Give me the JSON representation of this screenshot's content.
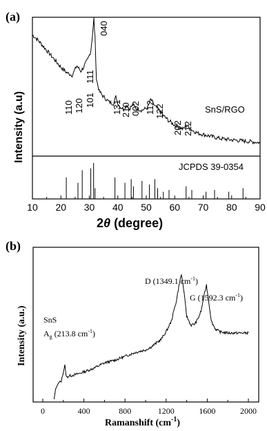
{
  "chart_data": [
    {
      "panel": "(a)",
      "type": "line",
      "xlabel": "2θ (degree)",
      "ylabel": "Intensity (a.u)",
      "xlim": [
        10,
        90
      ],
      "xticks": [
        "10",
        "20",
        "30",
        "40",
        "50",
        "60",
        "70",
        "80",
        "90"
      ],
      "series": [
        {
          "name": "SnS/RGO",
          "x": [
            10,
            12,
            14,
            16,
            18,
            20,
            22,
            24,
            25.6,
            27,
            28,
            29.5,
            30.5,
            31.2,
            31.6,
            32.0,
            32.5,
            33.5,
            35,
            37,
            38.5,
            39.3,
            40.5,
            42,
            43.2,
            44,
            45.3,
            46.8,
            48.5,
            50.5,
            51.6,
            53,
            54.5,
            56,
            58,
            60,
            62,
            63,
            64.2,
            65.5,
            68,
            72,
            76,
            80,
            85,
            90
          ],
          "y": [
            88,
            84,
            79,
            74,
            69,
            64,
            60,
            58,
            65,
            61,
            64,
            70,
            76,
            90,
            100,
            85,
            55,
            46,
            42,
            38,
            37,
            42,
            35,
            33,
            36,
            33,
            36,
            33,
            32,
            34,
            40,
            35,
            32,
            28,
            24,
            21,
            19,
            18,
            21,
            18,
            15,
            13,
            11,
            10,
            9,
            8
          ]
        }
      ],
      "annotations": [
        "110",
        "120",
        "101",
        "111",
        "040",
        "131",
        "210",
        "002",
        "112",
        "122",
        "202",
        "212"
      ]
    },
    {
      "panel": "(a) lower",
      "type": "bar",
      "title": "JCPDS 39-0354",
      "xlim": [
        10,
        90
      ],
      "x": [
        21.9,
        26.0,
        27.5,
        30.5,
        31.5,
        32.0,
        39.0,
        42.5,
        44.7,
        45.5,
        48.5,
        51.1,
        53.0,
        54.0,
        56.0,
        58.0,
        64.0,
        66.0,
        71.0,
        74.0,
        79.0,
        84.0
      ],
      "values": [
        60,
        45,
        80,
        85,
        100,
        30,
        60,
        45,
        55,
        35,
        50,
        40,
        55,
        30,
        20,
        25,
        35,
        25,
        20,
        25,
        20,
        30
      ]
    },
    {
      "panel": "(b)",
      "type": "line",
      "xlabel": "Ramanshift (cm⁻¹)",
      "ylabel": "Intensity (a.u.)",
      "xlim": [
        0,
        2000
      ],
      "xticks": [
        "0",
        "400",
        "800",
        "1200",
        "1600",
        "2000"
      ],
      "series": [
        {
          "x": [
            110,
            125,
            150,
            180,
            213.8,
            230,
            260,
            320,
            400,
            500,
            600,
            700,
            800,
            900,
            1000,
            1050,
            1100,
            1150,
            1200,
            1250,
            1300,
            1330,
            1349.1,
            1370,
            1400,
            1440,
            1480,
            1510,
            1540,
            1570,
            1592.3,
            1610,
            1640,
            1680,
            1720,
            1800,
            1900,
            2000
          ],
          "y": [
            0,
            8,
            12,
            14,
            26,
            17,
            18,
            19,
            21,
            24,
            28,
            30,
            33,
            36,
            38,
            40,
            43,
            46,
            52,
            60,
            76,
            90,
            96,
            85,
            64,
            57,
            58,
            62,
            68,
            80,
            88,
            78,
            60,
            54,
            52,
            51,
            51,
            51
          ]
        }
      ],
      "annotations": [
        {
          "label": "D (1349.1 cm⁻¹)",
          "x": 1349.1
        },
        {
          "label": "G (1592.3 cm⁻¹)",
          "x": 1592.3
        },
        {
          "label": "SnS",
          "x": 213.8
        },
        {
          "label": "Ag (213.8 cm⁻¹)",
          "x": 213.8
        }
      ]
    }
  ],
  "panel_a": {
    "label": "(a)",
    "series_label": "SnS/RGO",
    "ref_label": "JCPDS 39-0354",
    "ylabel": "Intensity (a.u)",
    "xlabel_main": "2",
    "xlabel_theta": "θ",
    "xlabel_rest": " (degree)",
    "peaks": [
      "110",
      "120",
      "101",
      "111",
      "040",
      "131",
      "210",
      "002",
      "112",
      "122",
      "202",
      "212"
    ]
  },
  "panel_b": {
    "label": "(b)",
    "ylabel": "Intensity (a.u.)",
    "xlabel_main": "Ramanshift (cm",
    "xlabel_sup": "-1",
    "xlabel_end": ")",
    "d_main": "D (1349.1 cm",
    "g_main": "G (1592.3 cm",
    "sup": "-1",
    "close": ")",
    "sns": "SnS",
    "ag_A": "A",
    "ag_sub": "g",
    "ag_rest": " (213.8 cm"
  }
}
